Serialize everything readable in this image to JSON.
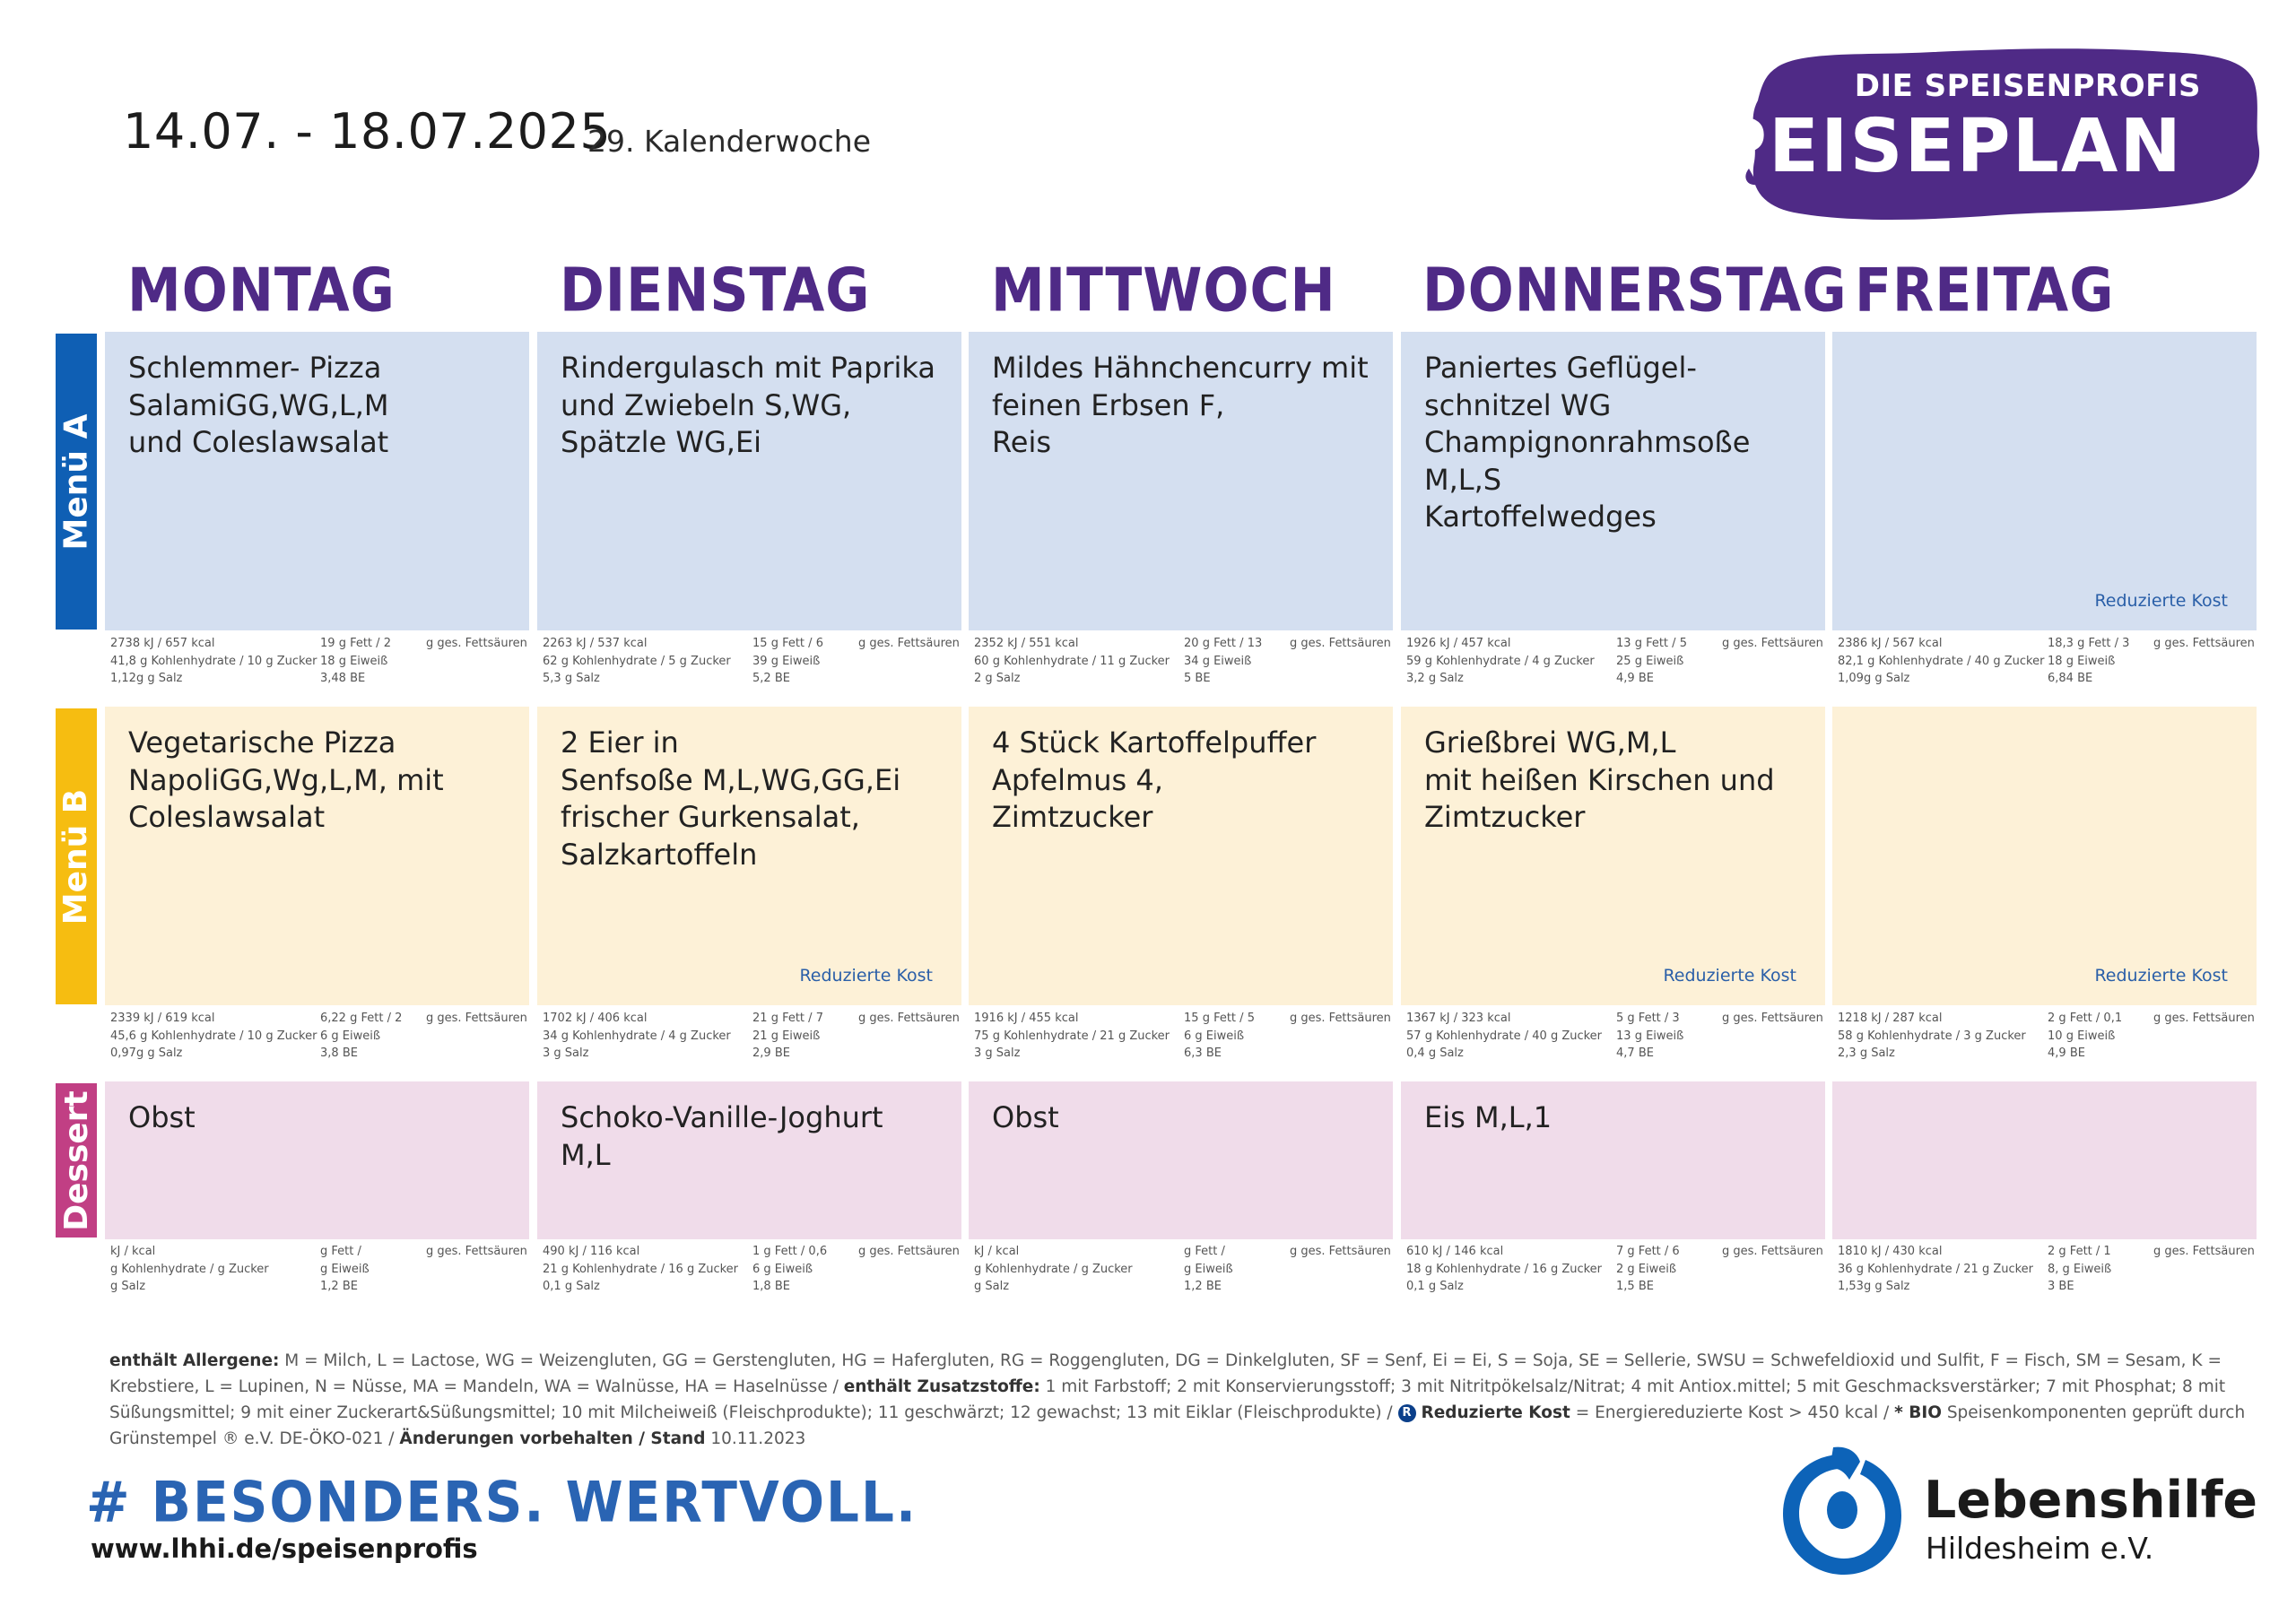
{
  "header": {
    "date_range": "14.07. - 18.07.2025",
    "week": "29. Kalenderwoche",
    "brand_small": "DIE SPEISENPROFIS",
    "brand_big": "SPEISEPLAN"
  },
  "days": [
    "MONTAG",
    "DIENSTAG",
    "MITTWOCH",
    "DONNERSTAG",
    "FREITAG"
  ],
  "rows": [
    {
      "label": "Menü A",
      "color": "#0f5fb4",
      "cell_bg": "#d4dff0"
    },
    {
      "label": "Menü B",
      "color": "#f6bd11",
      "cell_bg": "#fdf1d7"
    },
    {
      "label": "Dessert",
      "color": "#c13f84",
      "cell_bg": "#f0dcea"
    }
  ],
  "menu_a": [
    {
      "dish": "Schlemmer- Pizza\nSalamiGG,WG,L,M\nund Coleslawsalat",
      "rk": "",
      "n": {
        "kj": "2738",
        "kcal": "657",
        "fett": "19",
        "ges": "2",
        "kh": "41,8",
        "zucker": "10",
        "eiw": "18",
        "salz": "1,12g",
        "be": "3,48"
      }
    },
    {
      "dish": "Rindergulasch mit Paprika\nund Zwiebeln S,WG,\nSpätzle WG,Ei",
      "rk": "",
      "n": {
        "kj": "2263",
        "kcal": "537",
        "fett": "15",
        "ges": "6",
        "kh": "62",
        "zucker": "5",
        "eiw": "39",
        "salz": "5,3",
        "be": "5,2"
      }
    },
    {
      "dish": "Mildes Hähnchencurry mit\nfeinen Erbsen F,\nReis",
      "rk": "",
      "n": {
        "kj": "2352",
        "kcal": "551",
        "fett": "20",
        "ges": "13",
        "kh": "60",
        "zucker": "11",
        "eiw": "34",
        "salz": "2",
        "be": "5"
      }
    },
    {
      "dish": "Paniertes Geflügel-\nschnitzel WG\nChampignonrahmsoße\nM,L,S\nKartoffelwedges",
      "rk": "",
      "n": {
        "kj": "1926",
        "kcal": "457",
        "fett": "13",
        "ges": "5",
        "kh": "59",
        "zucker": "4",
        "eiw": "25",
        "salz": "3,2",
        "be": "4,9"
      }
    },
    {
      "dish": "",
      "rk": "Reduzierte Kost",
      "n": {
        "kj": "2386",
        "kcal": "567",
        "fett": "18,3",
        "ges": "3",
        "kh": "82,1",
        "zucker": "40",
        "eiw": "18",
        "salz": "1,09g",
        "be": "6,84"
      }
    }
  ],
  "menu_b": [
    {
      "dish": "Vegetarische Pizza\nNapoliGG,Wg,L,M, mit\nColeslawsalat",
      "rk": "",
      "n": {
        "kj": "2339",
        "kcal": "619",
        "fett": "6,22",
        "ges": "2",
        "kh": "45,6",
        "zucker": "10",
        "eiw": "6",
        "salz": "0,97g",
        "be": "3,8"
      }
    },
    {
      "dish": "2 Eier in\nSenfsoße M,L,WG,GG,Ei\nfrischer Gurkensalat,\nSalzkartoffeln",
      "rk": "Reduzierte Kost",
      "n": {
        "kj": "1702",
        "kcal": "406",
        "fett": "21",
        "ges": "7",
        "kh": "34",
        "zucker": "4",
        "eiw": "21",
        "salz": "3",
        "be": "2,9"
      }
    },
    {
      "dish": "4 Stück Kartoffelpuffer\nApfelmus 4,\nZimtzucker",
      "rk": "",
      "n": {
        "kj": "1916",
        "kcal": "455",
        "fett": "15",
        "ges": "5",
        "kh": "75",
        "zucker": "21",
        "eiw": "6",
        "salz": "3",
        "be": "6,3"
      }
    },
    {
      "dish": "Grießbrei WG,M,L\nmit heißen Kirschen und\nZimtzucker",
      "rk": "Reduzierte Kost",
      "n": {
        "kj": "1367",
        "kcal": "323",
        "fett": "5",
        "ges": "3",
        "kh": "57",
        "zucker": "40",
        "eiw": "13",
        "salz": "0,4",
        "be": "4,7"
      }
    },
    {
      "dish": "",
      "rk": "Reduzierte Kost",
      "n": {
        "kj": "1218",
        "kcal": "287",
        "fett": "2",
        "ges": "0,1",
        "kh": "58",
        "zucker": "3",
        "eiw": "10",
        "salz": "2,3",
        "be": "4,9"
      }
    }
  ],
  "dessert": [
    {
      "dish": "Obst",
      "rk": "",
      "n": {
        "kj": "",
        "kcal": "",
        "fett": "",
        "ges": "",
        "kh": "",
        "zucker": "",
        "eiw": "",
        "salz": "",
        "be": "1,2"
      }
    },
    {
      "dish": "Schoko-Vanille-Joghurt M,L",
      "rk": "",
      "n": {
        "kj": "490",
        "kcal": "116",
        "fett": "1",
        "ges": "0,6",
        "kh": "21",
        "zucker": "16",
        "eiw": "6",
        "salz": "0,1",
        "be": "1,8"
      }
    },
    {
      "dish": "Obst",
      "rk": "",
      "n": {
        "kj": "",
        "kcal": "",
        "fett": "",
        "ges": "",
        "kh": "",
        "zucker": "",
        "eiw": "",
        "salz": "",
        "be": "1,2"
      }
    },
    {
      "dish": "Eis M,L,1",
      "rk": "",
      "n": {
        "kj": "610",
        "kcal": "146",
        "fett": "7",
        "ges": "6",
        "kh": "18",
        "zucker": "16",
        "eiw": "2",
        "salz": "0,1",
        "be": "1,5"
      }
    },
    {
      "dish": "",
      "rk": "",
      "n": {
        "kj": "1810",
        "kcal": "430",
        "fett": "2",
        "ges": "1",
        "kh": "36",
        "zucker": "21",
        "eiw": "8,",
        "salz": "1,53g",
        "be": "3"
      }
    }
  ],
  "legend": {
    "allergene_label": "enthält Allergene:",
    "allergene_text": " M = Milch, L = Lactose, WG = Weizengluten, GG = Gerstengluten, HG = Hafergluten, RG = Roggengluten, DG = Dinkelgluten, SF = Senf, Ei = Ei, S = Soja, SE = Sellerie, SWSU = Schwefeldioxid und Sulfit, F = Fisch, SM = Sesam, K = Krebstiere, L = Lupinen, N = Nüsse, MA = Mandeln, WA = Walnüsse, HA =  Haselnüsse / ",
    "zusatz_label": "enthält Zusatzstoffe:",
    "zusatz_text": " 1 mit Farbstoff; 2 mit Konservierungsstoff; 3 mit Nitritpökelsalz/Nitrat; 4 mit Antiox.mittel; 5 mit Geschmacksverstärker; 7 mit Phosphat; 8 mit Süßungsmittel; 9 mit einer Zuckerart&Süßungsmittel; 10 mit Milcheiweiß (Fleischprodukte); 11 geschwärzt; 12 gewachst; 13 mit Eiklar (Fleischprodukte) / ",
    "r_badge": "R",
    "rk_label": "Reduzierte Kost",
    "rk_text": " = Energiereduzierte Kost > 450 kcal / ",
    "bio_label": "* BIO",
    "bio_text": " Speisenkomponenten geprüft durch Grünstempel ® e.V. DE-ÖKO-021 / ",
    "aend_label": "Änderungen vorbehalten / Stand",
    "aend_date": "  10.11.2023"
  },
  "footer": {
    "slogan": "# BESONDERS. WERTVOLL.",
    "url": "www.lhhi.de/speisenprofis",
    "org_name": "Lebenshilfe",
    "org_sub": "Hildesheim e.V."
  },
  "units": {
    "kj": "kJ /",
    "kcal": "kcal",
    "fett": "g Fett /",
    "ges": "g ges. Fettsäuren",
    "kh": "g Kohlenhydrate /",
    "zucker": "g Zucker",
    "eiw": "g Eiweiß",
    "salz": "g Salz",
    "be": "BE"
  },
  "colors": {
    "purple": "#4f2a86",
    "brand_blue": "#2a64b3",
    "logo_blue": "#0d63b8"
  }
}
